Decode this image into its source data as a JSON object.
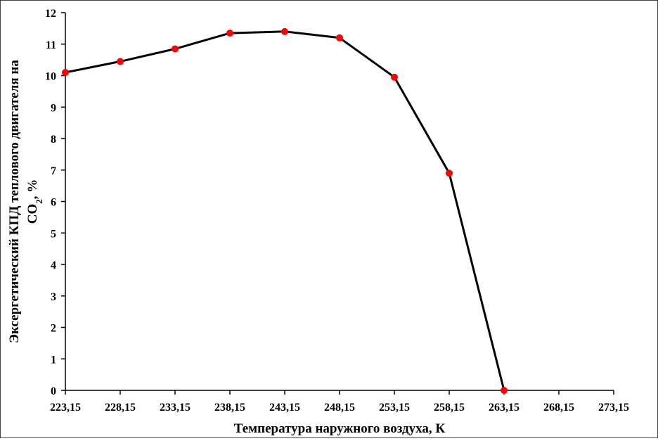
{
  "chart_data": {
    "type": "line",
    "xlabel": "Температура наружного воздуха, К",
    "ylabel_main": "Эксергетический КПД теплового двигателя на",
    "ylabel_line2_prefix": "CO",
    "ylabel_line2_sub": "2",
    "ylabel_line2_suffix": ", %",
    "x_ticks": [
      "223,15",
      "228,15",
      "233,15",
      "238,15",
      "243,15",
      "248,15",
      "253,15",
      "258,15",
      "263,15",
      "268,15",
      "273,15"
    ],
    "y_ticks": [
      "0",
      "1",
      "2",
      "3",
      "4",
      "5",
      "6",
      "7",
      "8",
      "9",
      "10",
      "11",
      "12"
    ],
    "xlim": [
      223.15,
      273.15
    ],
    "ylim": [
      0,
      12
    ],
    "grid": false,
    "series": [
      {
        "x": [
          223.15,
          228.15,
          233.15,
          238.15,
          243.15,
          248.15,
          253.15,
          258.15,
          263.15
        ],
        "values": [
          10.1,
          10.45,
          10.85,
          11.35,
          11.4,
          11.2,
          9.95,
          6.9,
          0
        ],
        "line_color": "#000000",
        "marker_color": "#ff0000"
      }
    ]
  }
}
